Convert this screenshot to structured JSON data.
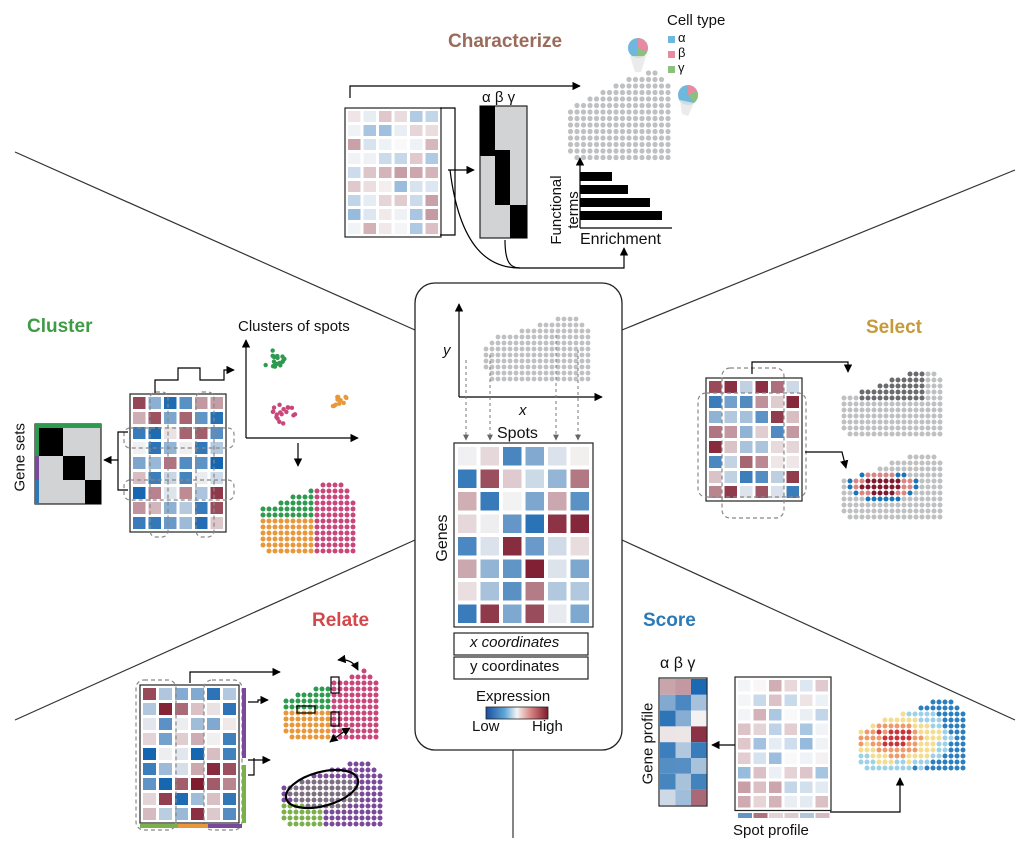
{
  "panels": {
    "characterize": {
      "title": "Characterize",
      "color": "#9a6b5a"
    },
    "cluster": {
      "title": "Cluster",
      "color": "#3f9b45"
    },
    "select": {
      "title": "Select",
      "color": "#c69a3b"
    },
    "relate": {
      "title": "Relate",
      "color": "#d4474b"
    },
    "score": {
      "title": "Score",
      "color": "#2a7ab8"
    }
  },
  "labels": {
    "cell_type": "Cell type",
    "alpha": "α",
    "beta": "β",
    "gamma": "γ",
    "greek_header": "α β γ",
    "functional_terms": "Functional terms",
    "enrichment": "Enrichment",
    "clusters_of_spots": "Clusters of spots",
    "gene_sets": "Gene sets",
    "axis_y": "y",
    "axis_x": "x",
    "spots": "Spots",
    "genes": "Genes",
    "x_coordinates": "x coordinates",
    "y_coordinates": "y coordinates",
    "expression": "Expression",
    "low": "Low",
    "high": "High",
    "gene_profile": "Gene profile",
    "spot_profile": "Spot profile"
  },
  "colors": {
    "spot_grey": "#bfc0c2",
    "expr_low": "#1a74b8",
    "expr_mid": "#f2f2f2",
    "expr_high": "#7e1a2e",
    "cluster_green": "#2e9a4f",
    "cluster_pink": "#c8467a",
    "cluster_orange": "#e8973a",
    "relate_purple": "#7a4a9a",
    "relate_green": "#7bb04d",
    "cell_alpha": "#6fb7dd",
    "cell_beta": "#e88aa0",
    "cell_gamma": "#8cc07f"
  }
}
